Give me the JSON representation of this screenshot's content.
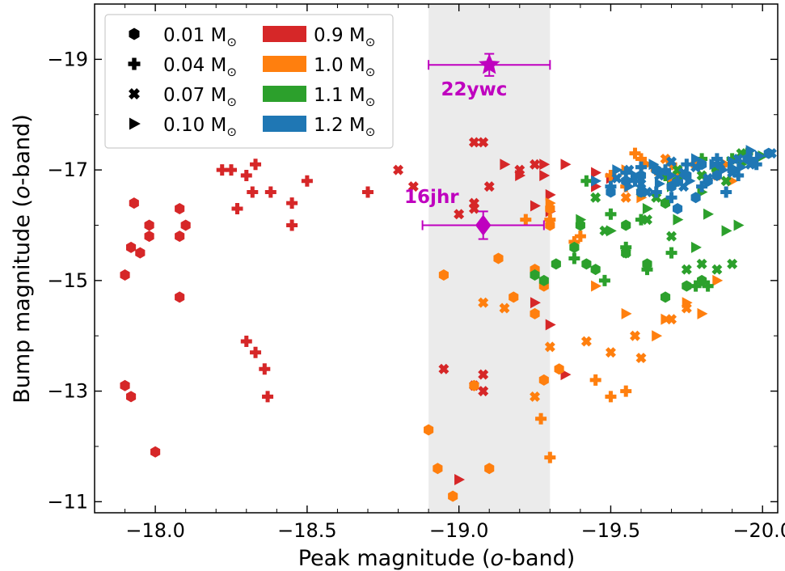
{
  "chart_data": {
    "type": "scatter",
    "x_axis": {
      "label_main": "Peak magnitude (",
      "label_italic": "o",
      "label_end": "-band)",
      "range": [
        -17.8,
        -20.05
      ],
      "inverted": true,
      "ticks": [
        -18.0,
        -18.5,
        -19.0,
        -19.5,
        -20.0
      ],
      "tick_labels": [
        "−18.0",
        "−18.5",
        "−19.0",
        "−19.5",
        "−20.0"
      ]
    },
    "y_axis": {
      "label_main": "Bump magnitude (",
      "label_italic": "o",
      "label_end": "-band)",
      "range": [
        -10.8,
        -20.0
      ],
      "inverted": true,
      "ticks": [
        -11,
        -13,
        -15,
        -17,
        -19
      ],
      "tick_labels": [
        "−11",
        "−13",
        "−15",
        "−17",
        "−19"
      ]
    },
    "shaded_band": {
      "x_range": [
        -18.9,
        -19.3
      ],
      "color": "#ebebeb"
    },
    "legend": {
      "placement": "top-left",
      "markers": [
        {
          "shape": "hexagon",
          "label": "0.01 M",
          "sub": "⊙"
        },
        {
          "shape": "plus",
          "label": "0.04 M",
          "sub": "⊙"
        },
        {
          "shape": "x",
          "label": "0.07 M",
          "sub": "⊙"
        },
        {
          "shape": "triangle-right",
          "label": "0.10 M",
          "sub": "⊙"
        }
      ],
      "colors": [
        {
          "color": "#d62728",
          "label": "0.9 M",
          "sub": "⊙"
        },
        {
          "color": "#ff7f0e",
          "label": "1.0 M",
          "sub": "⊙"
        },
        {
          "color": "#2ca02c",
          "label": "1.1 M",
          "sub": "⊙"
        },
        {
          "color": "#1f77b4",
          "label": "1.2 M",
          "sub": "⊙"
        }
      ]
    },
    "observations": [
      {
        "label": "22ywc",
        "x": -19.1,
        "y": -18.9,
        "xerr": 0.2,
        "yerr": 0.2,
        "marker": "star",
        "color": "#bf00bf",
        "label_dx": 0.05,
        "label_dy": 0.55
      },
      {
        "label": "16jhr",
        "x": -19.08,
        "y": -16.0,
        "xerr": 0.2,
        "yerr": 0.25,
        "marker": "diamond",
        "color": "#bf00bf",
        "label_dx": 0.17,
        "label_dy": -0.4
      }
    ],
    "series": [
      {
        "color": "#d62728",
        "shape": "hexagon",
        "points": [
          [
            -17.9,
            -15.1
          ],
          [
            -17.95,
            -15.5
          ],
          [
            -17.98,
            -15.8
          ],
          [
            -17.98,
            -16.0
          ],
          [
            -18.08,
            -16.3
          ],
          [
            -18.08,
            -15.8
          ],
          [
            -18.1,
            -16.0
          ],
          [
            -18.08,
            -14.7
          ],
          [
            -17.9,
            -13.1
          ],
          [
            -17.92,
            -12.9
          ],
          [
            -18.0,
            -11.9
          ],
          [
            -17.93,
            -16.4
          ],
          [
            -17.92,
            -15.6
          ]
        ]
      },
      {
        "color": "#d62728",
        "shape": "plus",
        "points": [
          [
            -18.3,
            -16.9
          ],
          [
            -18.33,
            -17.1
          ],
          [
            -18.32,
            -16.6
          ],
          [
            -18.38,
            -16.6
          ],
          [
            -18.45,
            -16.4
          ],
          [
            -18.5,
            -16.8
          ],
          [
            -18.45,
            -16.0
          ],
          [
            -18.27,
            -16.3
          ],
          [
            -18.25,
            -17.0
          ],
          [
            -18.22,
            -17.0
          ],
          [
            -18.7,
            -16.6
          ],
          [
            -18.3,
            -13.9
          ],
          [
            -18.33,
            -13.7
          ],
          [
            -18.36,
            -13.4
          ],
          [
            -18.37,
            -12.9
          ]
        ]
      },
      {
        "color": "#d62728",
        "shape": "x",
        "points": [
          [
            -18.8,
            -17.0
          ],
          [
            -19.05,
            -17.5
          ],
          [
            -19.08,
            -17.5
          ],
          [
            -19.2,
            -17.0
          ],
          [
            -19.25,
            -17.1
          ],
          [
            -19.1,
            -16.7
          ],
          [
            -19.05,
            -16.4
          ],
          [
            -19.05,
            -16.3
          ],
          [
            -18.85,
            -16.7
          ],
          [
            -19.0,
            -16.2
          ],
          [
            -18.95,
            -13.4
          ],
          [
            -19.05,
            -13.1
          ],
          [
            -19.08,
            -13.3
          ],
          [
            -19.08,
            -13.0
          ]
        ]
      },
      {
        "color": "#d62728",
        "shape": "triangle-right",
        "points": [
          [
            -19.15,
            -17.1
          ],
          [
            -19.2,
            -16.9
          ],
          [
            -19.28,
            -17.1
          ],
          [
            -19.35,
            -17.1
          ],
          [
            -19.45,
            -16.95
          ],
          [
            -19.5,
            -16.85
          ],
          [
            -19.45,
            -16.7
          ],
          [
            -19.3,
            -16.55
          ],
          [
            -19.25,
            -16.35
          ],
          [
            -19.3,
            -16.25
          ],
          [
            -19.25,
            -14.6
          ],
          [
            -19.3,
            -14.2
          ],
          [
            -19.35,
            -13.3
          ],
          [
            -19.0,
            -11.4
          ],
          [
            -19.28,
            -16.9
          ]
        ]
      },
      {
        "color": "#ff7f0e",
        "shape": "hexagon",
        "points": [
          [
            -18.95,
            -15.1
          ],
          [
            -19.13,
            -15.4
          ],
          [
            -19.18,
            -14.7
          ],
          [
            -19.25,
            -15.2
          ],
          [
            -19.28,
            -14.9
          ],
          [
            -19.3,
            -16.3
          ],
          [
            -19.25,
            -14.4
          ],
          [
            -19.33,
            -13.4
          ],
          [
            -19.28,
            -13.2
          ],
          [
            -19.05,
            -13.1
          ],
          [
            -18.9,
            -12.3
          ],
          [
            -18.93,
            -11.6
          ],
          [
            -18.98,
            -11.1
          ],
          [
            -19.1,
            -11.6
          ],
          [
            -19.3,
            -16.0
          ]
        ]
      },
      {
        "color": "#ff7f0e",
        "shape": "plus",
        "points": [
          [
            -19.4,
            -15.8
          ],
          [
            -19.3,
            -16.1
          ],
          [
            -19.22,
            -16.1
          ],
          [
            -19.45,
            -13.2
          ],
          [
            -19.5,
            -12.9
          ],
          [
            -19.55,
            -13.0
          ],
          [
            -19.27,
            -12.5
          ],
          [
            -19.3,
            -11.8
          ],
          [
            -19.58,
            -17.3
          ],
          [
            -19.6,
            -17.2
          ],
          [
            -19.65,
            -17.0
          ],
          [
            -19.7,
            -17.1
          ],
          [
            -19.5,
            -16.9
          ],
          [
            -19.55,
            -16.7
          ],
          [
            -19.38,
            -15.7
          ]
        ]
      },
      {
        "color": "#ff7f0e",
        "shape": "x",
        "points": [
          [
            -19.5,
            -13.7
          ],
          [
            -19.6,
            -13.6
          ],
          [
            -19.58,
            -14.0
          ],
          [
            -19.7,
            -14.3
          ],
          [
            -19.75,
            -14.5
          ],
          [
            -19.3,
            -13.8
          ],
          [
            -19.25,
            -12.9
          ],
          [
            -19.15,
            -14.5
          ],
          [
            -19.08,
            -14.6
          ],
          [
            -19.42,
            -13.9
          ],
          [
            -19.68,
            -17.2
          ],
          [
            -19.72,
            -17.0
          ],
          [
            -19.55,
            -16.5
          ],
          [
            -19.78,
            -17.1
          ],
          [
            -19.85,
            -16.9
          ]
        ]
      },
      {
        "color": "#ff7f0e",
        "shape": "triangle-right",
        "points": [
          [
            -19.55,
            -14.4
          ],
          [
            -19.65,
            -14.0
          ],
          [
            -19.68,
            -14.3
          ],
          [
            -19.75,
            -14.6
          ],
          [
            -19.8,
            -14.4
          ],
          [
            -19.3,
            -16.4
          ],
          [
            -19.55,
            -17.0
          ],
          [
            -19.62,
            -17.1
          ],
          [
            -19.7,
            -16.8
          ],
          [
            -19.45,
            -14.9
          ],
          [
            -19.85,
            -15.0
          ],
          [
            -19.88,
            -17.1
          ],
          [
            -19.9,
            -16.8
          ],
          [
            -19.6,
            -16.5
          ],
          [
            -19.73,
            -16.9
          ]
        ]
      },
      {
        "color": "#2ca02c",
        "shape": "hexagon",
        "points": [
          [
            -19.25,
            -15.1
          ],
          [
            -19.28,
            -15.0
          ],
          [
            -19.32,
            -15.3
          ],
          [
            -19.38,
            -15.6
          ],
          [
            -19.42,
            -15.3
          ],
          [
            -19.45,
            -15.2
          ],
          [
            -19.55,
            -15.5
          ],
          [
            -19.62,
            -15.3
          ],
          [
            -19.68,
            -14.7
          ],
          [
            -19.75,
            -14.9
          ],
          [
            -19.8,
            -15.0
          ],
          [
            -19.4,
            -16.0
          ],
          [
            -19.55,
            -16.0
          ],
          [
            -19.68,
            -16.4
          ],
          [
            -19.72,
            -16.8
          ]
        ]
      },
      {
        "color": "#2ca02c",
        "shape": "plus",
        "points": [
          [
            -19.38,
            -15.4
          ],
          [
            -19.48,
            -15.0
          ],
          [
            -19.55,
            -15.6
          ],
          [
            -19.62,
            -15.2
          ],
          [
            -19.7,
            -15.5
          ],
          [
            -19.78,
            -14.9
          ],
          [
            -19.82,
            -14.9
          ],
          [
            -19.6,
            -16.1
          ],
          [
            -19.8,
            -17.2
          ],
          [
            -19.85,
            -17.0
          ],
          [
            -19.5,
            -16.2
          ],
          [
            -19.42,
            -16.8
          ],
          [
            -19.68,
            -16.9
          ],
          [
            -19.9,
            -17.2
          ],
          [
            -19.95,
            -17.3
          ]
        ]
      },
      {
        "color": "#2ca02c",
        "shape": "x",
        "points": [
          [
            -19.48,
            -15.9
          ],
          [
            -19.55,
            -15.5
          ],
          [
            -19.62,
            -16.1
          ],
          [
            -19.7,
            -15.8
          ],
          [
            -19.75,
            -15.2
          ],
          [
            -19.8,
            -15.3
          ],
          [
            -19.85,
            -15.2
          ],
          [
            -19.9,
            -15.3
          ],
          [
            -19.72,
            -17.0
          ],
          [
            -19.8,
            -16.9
          ],
          [
            -19.88,
            -16.8
          ],
          [
            -19.6,
            -16.6
          ],
          [
            -19.45,
            -16.5
          ],
          [
            -19.65,
            -16.5
          ],
          [
            -19.93,
            -17.3
          ]
        ]
      },
      {
        "color": "#2ca02c",
        "shape": "triangle-right",
        "points": [
          [
            -19.4,
            -16.1
          ],
          [
            -19.5,
            -15.9
          ],
          [
            -19.62,
            -16.3
          ],
          [
            -19.72,
            -16.1
          ],
          [
            -19.78,
            -15.6
          ],
          [
            -19.82,
            -16.2
          ],
          [
            -19.88,
            -15.9
          ],
          [
            -19.92,
            -16.0
          ],
          [
            -19.85,
            -17.0
          ],
          [
            -19.9,
            -17.15
          ],
          [
            -19.95,
            -17.2
          ],
          [
            -20.0,
            -17.25
          ],
          [
            -19.7,
            -16.7
          ],
          [
            -19.8,
            -16.6
          ],
          [
            -19.93,
            -17.1
          ]
        ]
      },
      {
        "color": "#1f77b4",
        "shape": "hexagon",
        "points": [
          [
            -19.5,
            -16.6
          ],
          [
            -19.55,
            -16.8
          ],
          [
            -19.6,
            -16.9
          ],
          [
            -19.65,
            -17.0
          ],
          [
            -19.7,
            -16.7
          ],
          [
            -19.75,
            -16.9
          ],
          [
            -19.8,
            -17.1
          ],
          [
            -19.85,
            -16.9
          ],
          [
            -19.9,
            -17.0
          ],
          [
            -19.6,
            -16.6
          ],
          [
            -19.72,
            -16.3
          ],
          [
            -19.78,
            -16.5
          ],
          [
            -19.82,
            -16.8
          ],
          [
            -19.95,
            -17.2
          ],
          [
            -20.02,
            -17.3
          ]
        ]
      },
      {
        "color": "#1f77b4",
        "shape": "plus",
        "points": [
          [
            -19.5,
            -16.7
          ],
          [
            -19.58,
            -16.8
          ],
          [
            -19.65,
            -16.6
          ],
          [
            -19.72,
            -16.8
          ],
          [
            -19.8,
            -16.7
          ],
          [
            -19.88,
            -16.6
          ],
          [
            -19.92,
            -16.9
          ],
          [
            -19.98,
            -17.1
          ],
          [
            -19.85,
            -17.2
          ],
          [
            -19.75,
            -17.1
          ],
          [
            -19.68,
            -17.0
          ],
          [
            -19.6,
            -17.05
          ],
          [
            -19.55,
            -16.95
          ],
          [
            -19.7,
            -16.5
          ],
          [
            -19.96,
            -17.2
          ]
        ]
      },
      {
        "color": "#1f77b4",
        "shape": "x",
        "points": [
          [
            -19.52,
            -16.85
          ],
          [
            -19.6,
            -16.75
          ],
          [
            -19.66,
            -16.9
          ],
          [
            -19.74,
            -16.95
          ],
          [
            -19.82,
            -16.85
          ],
          [
            -19.9,
            -16.95
          ],
          [
            -19.96,
            -17.1
          ],
          [
            -20.03,
            -17.3
          ],
          [
            -19.86,
            -17.1
          ],
          [
            -19.78,
            -17.05
          ],
          [
            -19.7,
            -17.15
          ],
          [
            -19.62,
            -16.6
          ],
          [
            -19.56,
            -17.0
          ],
          [
            -19.92,
            -17.2
          ],
          [
            -19.74,
            -16.7
          ]
        ]
      },
      {
        "color": "#1f77b4",
        "shape": "triangle-right",
        "points": [
          [
            -19.45,
            -16.8
          ],
          [
            -19.52,
            -17.0
          ],
          [
            -19.58,
            -16.9
          ],
          [
            -19.64,
            -17.1
          ],
          [
            -19.7,
            -16.9
          ],
          [
            -19.78,
            -17.2
          ],
          [
            -19.84,
            -17.1
          ],
          [
            -19.9,
            -17.15
          ],
          [
            -19.96,
            -17.35
          ],
          [
            -19.99,
            -17.25
          ],
          [
            -19.87,
            -17.0
          ],
          [
            -19.76,
            -16.8
          ],
          [
            -19.66,
            -16.75
          ],
          [
            -19.56,
            -16.7
          ],
          [
            -19.93,
            -17.05
          ]
        ]
      }
    ]
  }
}
